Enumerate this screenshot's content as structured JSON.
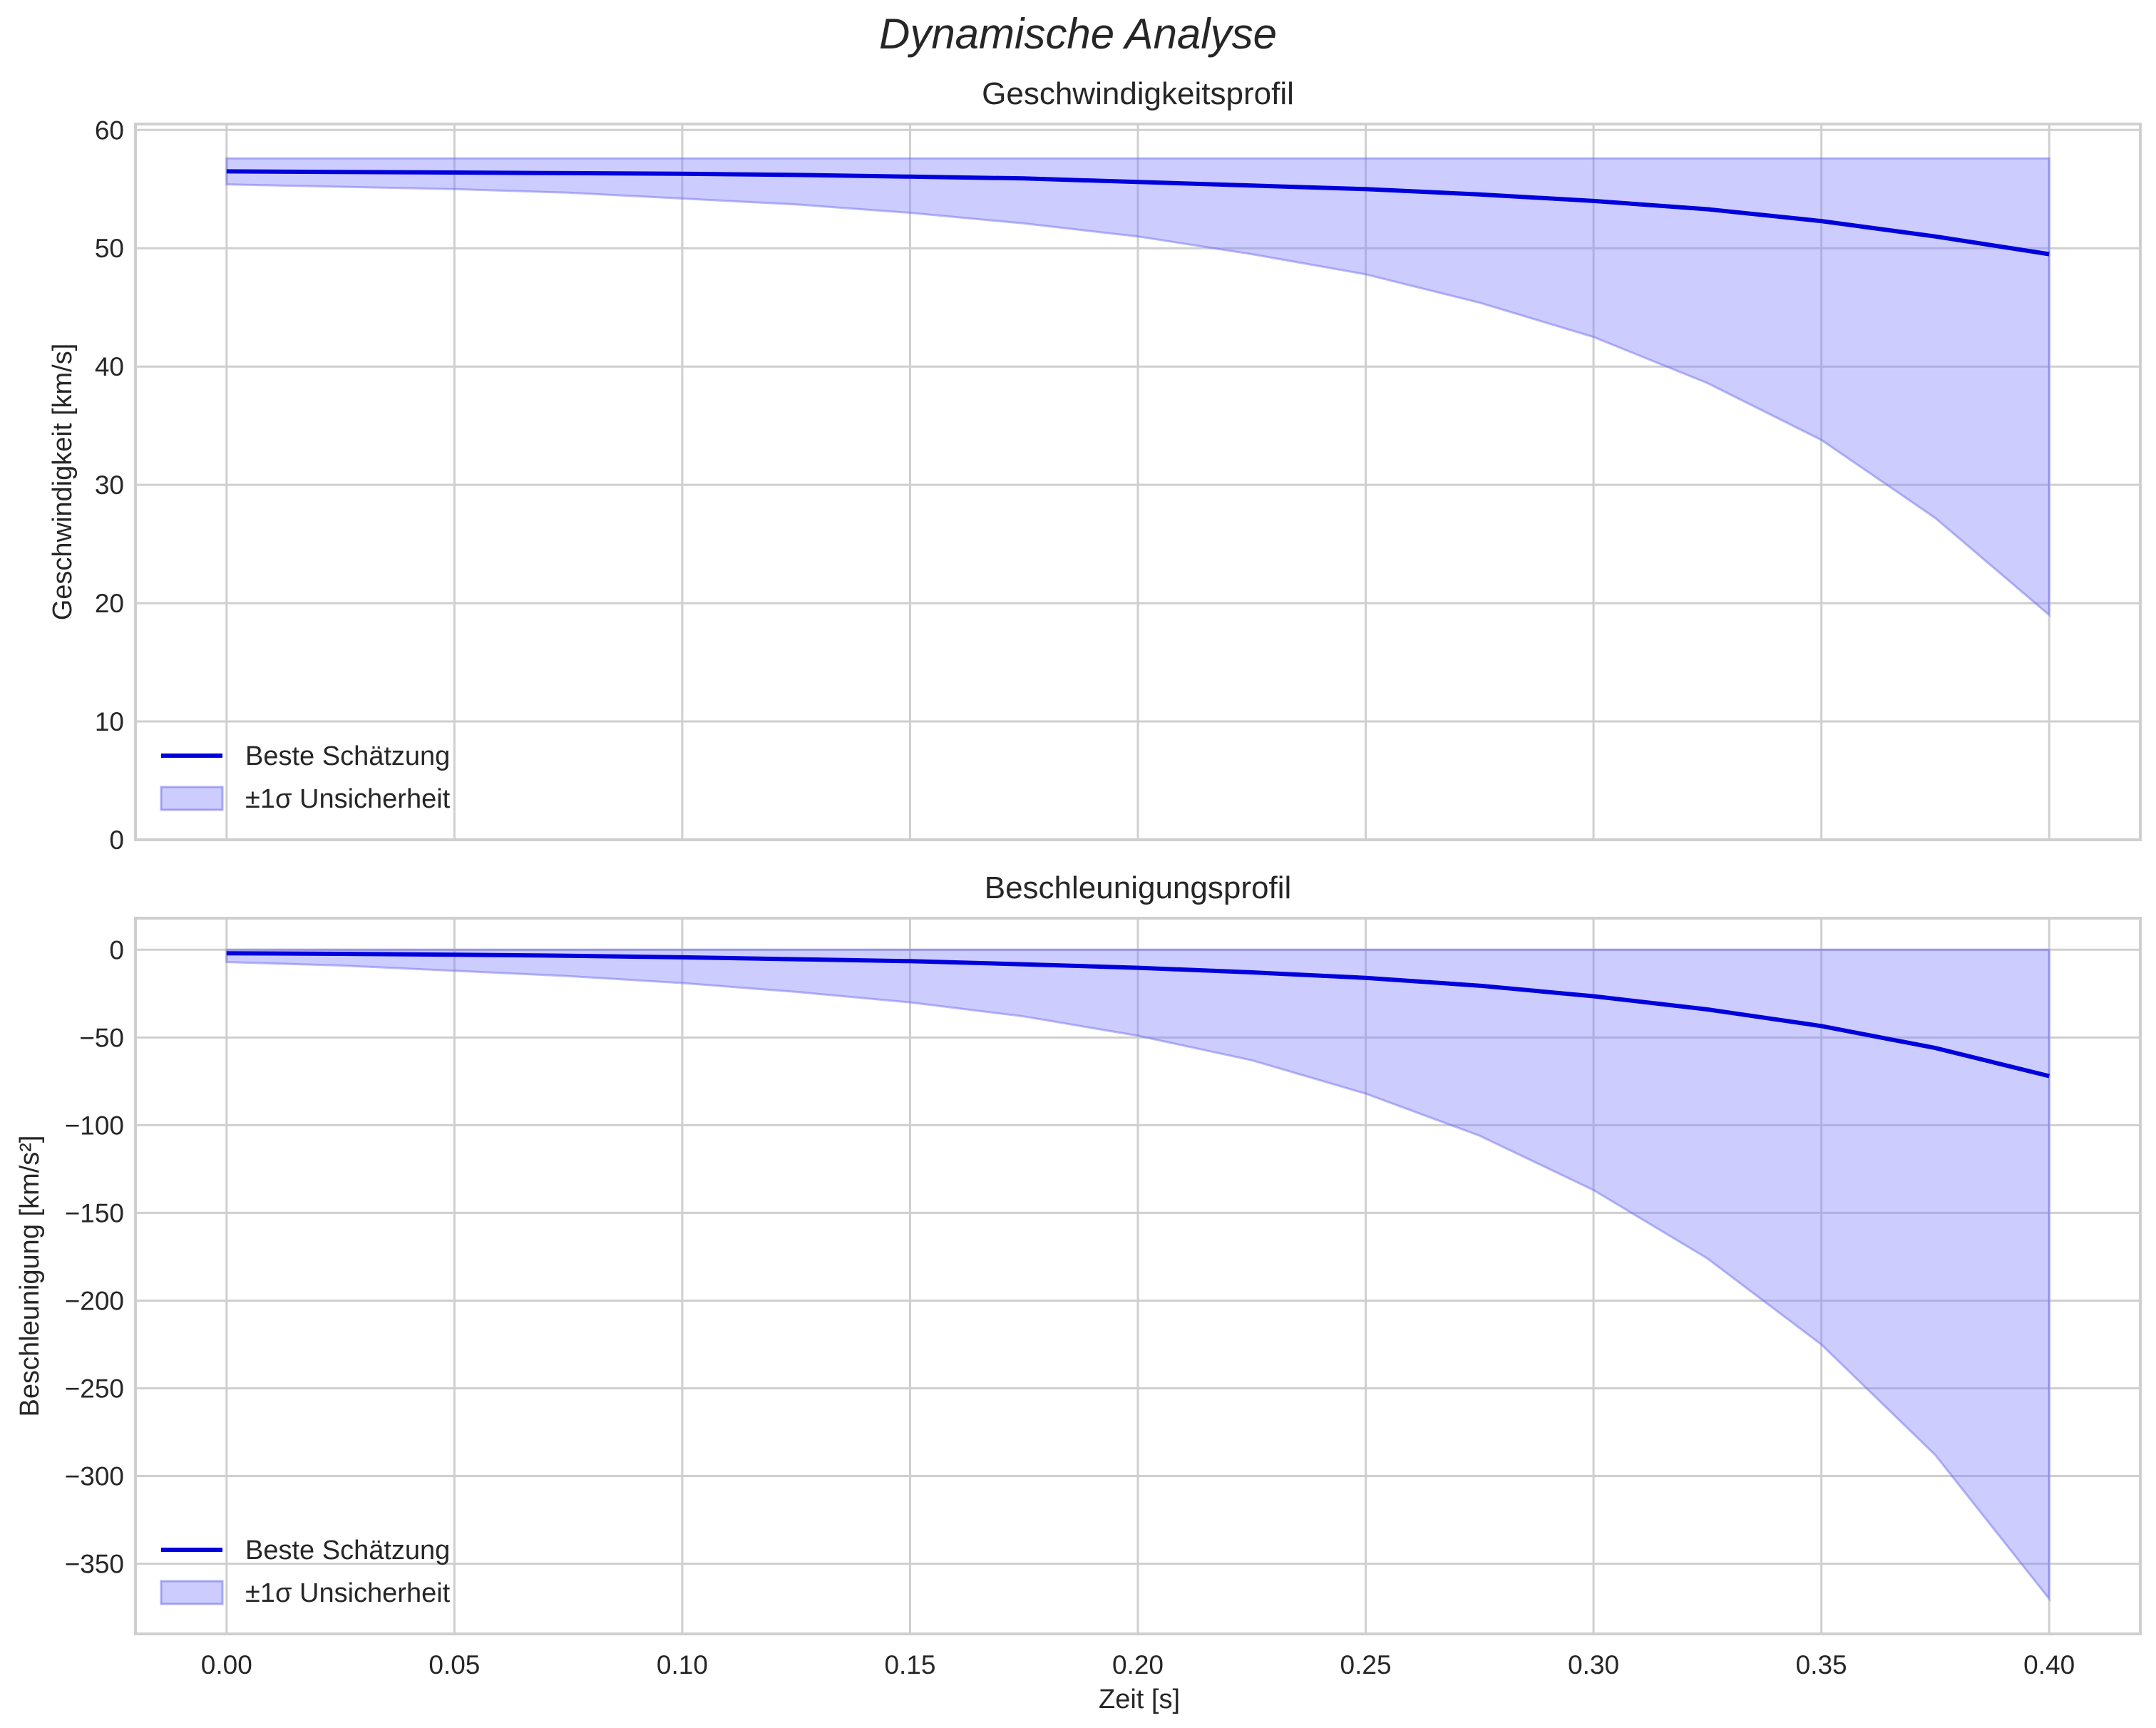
{
  "figure": {
    "suptitle": "Dynamische Analyse",
    "xlabel": "Zeit [s]"
  },
  "colors": {
    "line": "#0000dd",
    "band_fill": "#7f7fff",
    "band_edge": "#6666ee",
    "grid": "#cfcfcf",
    "text": "#262626"
  },
  "chart_data": [
    {
      "type": "line",
      "title": "Geschwindigkeitsprofil",
      "xlabel": "",
      "ylabel": "Geschwindigkeit [km/s]",
      "xlim": [
        -0.02,
        0.42
      ],
      "ylim": [
        0,
        60.5
      ],
      "xticks": [
        0.0,
        0.05,
        0.1,
        0.15,
        0.2,
        0.25,
        0.3,
        0.35,
        0.4
      ],
      "xtick_labels": [
        "0.00",
        "0.05",
        "0.10",
        "0.15",
        "0.20",
        "0.25",
        "0.30",
        "0.35",
        "0.40"
      ],
      "show_xtick_labels": false,
      "yticks": [
        0,
        10,
        20,
        30,
        40,
        50,
        60
      ],
      "ytick_labels": [
        "0",
        "10",
        "20",
        "30",
        "40",
        "50",
        "60"
      ],
      "grid": true,
      "legend_position": "lower-left",
      "x": [
        0.0,
        0.025,
        0.05,
        0.075,
        0.1,
        0.125,
        0.15,
        0.175,
        0.2,
        0.225,
        0.25,
        0.275,
        0.3,
        0.325,
        0.35,
        0.375,
        0.4
      ],
      "series": [
        {
          "name": "Beste Schätzung",
          "kind": "line",
          "values": [
            56.5,
            56.45,
            56.4,
            56.35,
            56.3,
            56.2,
            56.05,
            55.9,
            55.6,
            55.3,
            55.0,
            54.55,
            54.0,
            53.3,
            52.3,
            51.0,
            49.5
          ]
        },
        {
          "name": "±1σ Unsicherheit",
          "kind": "band",
          "lower": [
            55.4,
            55.2,
            55.0,
            54.7,
            54.2,
            53.7,
            53.0,
            52.1,
            51.0,
            49.5,
            47.8,
            45.4,
            42.5,
            38.6,
            33.8,
            27.2,
            19.0
          ],
          "upper": [
            57.6,
            57.6,
            57.6,
            57.6,
            57.6,
            57.6,
            57.6,
            57.6,
            57.6,
            57.6,
            57.6,
            57.6,
            57.6,
            57.6,
            57.6,
            57.6,
            57.6
          ]
        }
      ],
      "legend": [
        "Beste Schätzung",
        "±1σ Unsicherheit"
      ]
    },
    {
      "type": "line",
      "title": "Beschleunigungsprofil",
      "xlabel": "Zeit [s]",
      "ylabel": "Beschleunigung [km/s²]",
      "xlim": [
        -0.02,
        0.42
      ],
      "ylim": [
        -390,
        18
      ],
      "xticks": [
        0.0,
        0.05,
        0.1,
        0.15,
        0.2,
        0.25,
        0.3,
        0.35,
        0.4
      ],
      "xtick_labels": [
        "0.00",
        "0.05",
        "0.10",
        "0.15",
        "0.20",
        "0.25",
        "0.30",
        "0.35",
        "0.40"
      ],
      "show_xtick_labels": true,
      "yticks": [
        0,
        -50,
        -100,
        -150,
        -200,
        -250,
        -300,
        -350
      ],
      "ytick_labels": [
        "0",
        "−50",
        "−100",
        "−150",
        "−200",
        "−250",
        "−300",
        "−350"
      ],
      "grid": true,
      "legend_position": "lower-left",
      "x": [
        0.0,
        0.025,
        0.05,
        0.075,
        0.1,
        0.125,
        0.15,
        0.175,
        0.2,
        0.225,
        0.25,
        0.275,
        0.3,
        0.325,
        0.35,
        0.375,
        0.4
      ],
      "series": [
        {
          "name": "Beste Schätzung",
          "kind": "line",
          "values": [
            -2,
            -2.3,
            -2.8,
            -3.4,
            -4.3,
            -5.4,
            -6.5,
            -8.3,
            -10.3,
            -12.9,
            -16.0,
            -20.5,
            -26.5,
            -34.0,
            -43.5,
            -56.0,
            -72.0
          ]
        },
        {
          "name": "±1σ Unsicherheit",
          "kind": "band",
          "lower": [
            -7,
            -9,
            -12,
            -15,
            -19,
            -24,
            -30,
            -38,
            -49,
            -63,
            -82,
            -106,
            -137,
            -176,
            -225,
            -288,
            -370
          ],
          "upper": [
            0,
            0,
            0,
            0,
            0,
            0,
            0,
            0,
            0,
            0,
            0,
            0,
            0,
            0,
            0,
            0,
            0
          ]
        }
      ],
      "legend": [
        "Beste Schätzung",
        "±1σ Unsicherheit"
      ]
    }
  ]
}
